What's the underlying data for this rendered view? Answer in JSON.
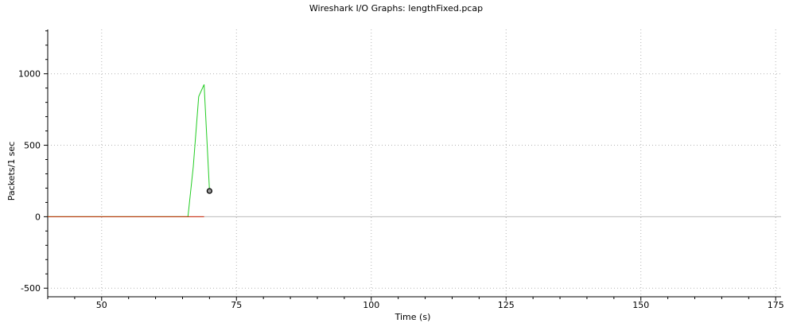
{
  "chart_data": {
    "type": "line",
    "title": "Wireshark I/O Graphs: lengthFixed.pcap",
    "xlabel": "Time (s)",
    "ylabel": "Packets/1 sec",
    "xlim": [
      40,
      176
    ],
    "ylim": [
      -560,
      1310
    ],
    "x_ticks": [
      50,
      75,
      100,
      125,
      150,
      175
    ],
    "x_tick_labels": [
      "50",
      "75",
      "100",
      "125",
      "150",
      "175"
    ],
    "y_ticks": [
      -500,
      0,
      500,
      1000
    ],
    "y_tick_labels": [
      "-500",
      "0",
      "500",
      "1000"
    ],
    "grid": true,
    "legend": "none",
    "series": [
      {
        "color": "#22cc22",
        "x": [
          40,
          66,
          67,
          68,
          69,
          70
        ],
        "y": [
          0,
          0,
          350,
          840,
          925,
          180
        ],
        "end_marker": true
      },
      {
        "color": "#cc2200",
        "x": [
          40,
          69
        ],
        "y": [
          0,
          0
        ]
      }
    ],
    "baseline_color": "#bbbbbb",
    "grid_color": "#b4b4b4"
  }
}
